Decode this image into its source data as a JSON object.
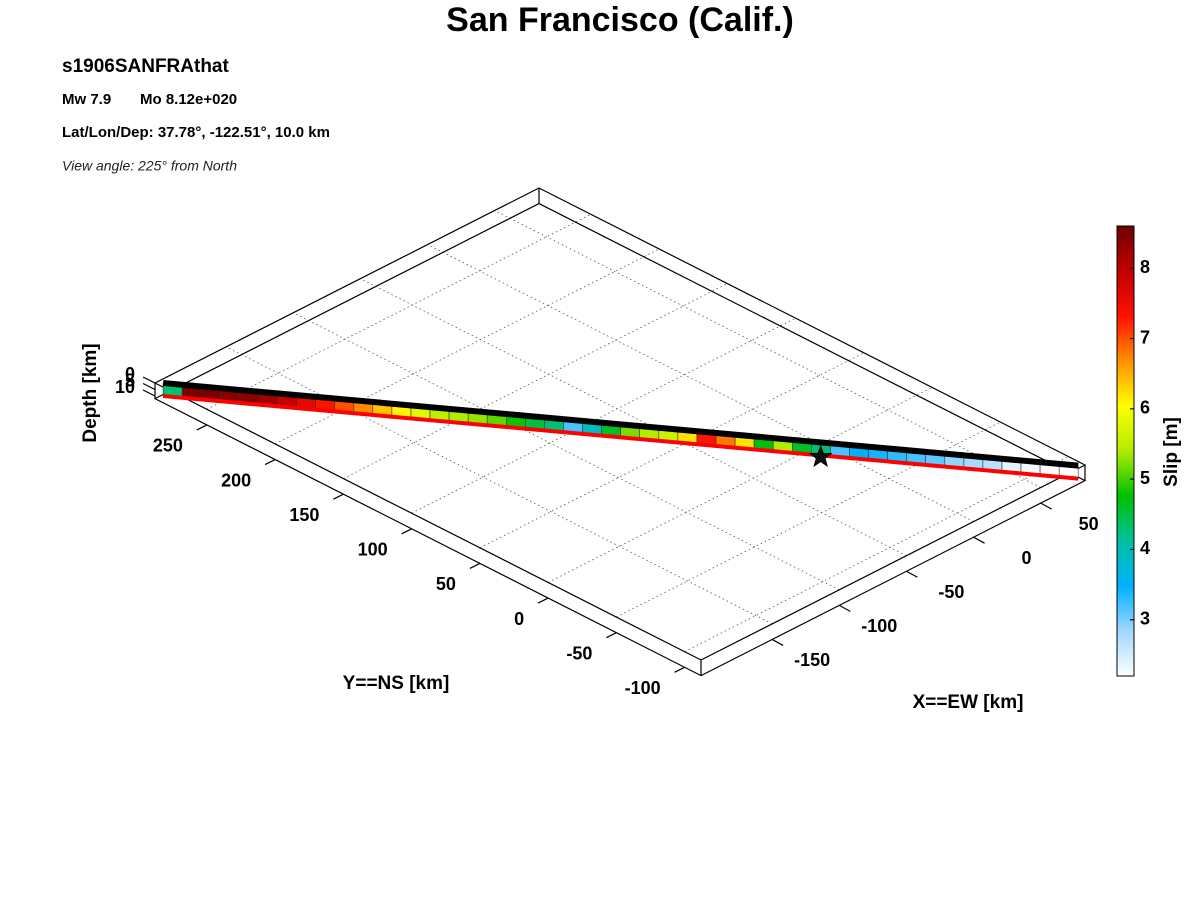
{
  "chart_data": {
    "type": "fault-slip",
    "title": "San Francisco (Calif.)",
    "event_id": "s1906SANFRAthat",
    "magnitude": "Mw 7.9",
    "moment": "Mo 8.12e+020",
    "location": "Lat/Lon/Dep: 37.78°, -122.51°, 10.0 km",
    "view": "View angle: 225° from North",
    "xlabel": "X==EW [km]",
    "ylabel": "Y==NS [km]",
    "zlabel": "Depth [km]",
    "colorbar_label": "Slip [m]",
    "xlim": [
      -203,
      83
    ],
    "xticks": [
      -150,
      -100,
      -50,
      0,
      50
    ],
    "ylim": [
      -112,
      288
    ],
    "yticks": [
      -100,
      -50,
      0,
      50,
      100,
      150,
      200,
      250
    ],
    "zlim": [
      0,
      12
    ],
    "zticks": [
      0,
      5,
      10
    ],
    "clim": [
      2.2,
      8.6
    ],
    "cticks": [
      3,
      4,
      5,
      6,
      7,
      8
    ],
    "colormap": [
      "#ffffff",
      "#a0d8ff",
      "#00b0ff",
      "#00c0a0",
      "#00c000",
      "#b0ec00",
      "#ffff00",
      "#ff9000",
      "#ff1000",
      "#c00000",
      "#700000"
    ],
    "grid": true,
    "fault": {
      "start": [
        -200,
        285
      ],
      "end": [
        80,
        -110
      ],
      "depth": [
        0,
        10
      ]
    },
    "slip": [
      4.3,
      8.5,
      8.5,
      8.4,
      8.4,
      8.2,
      7.9,
      7.6,
      7.3,
      7.0,
      6.7,
      6.4,
      6.1,
      5.8,
      5.5,
      5.4,
      5.3,
      5.1,
      4.8,
      4.5,
      4.3,
      3.2,
      3.9,
      4.6,
      5.2,
      5.4,
      5.6,
      6.2,
      7.3,
      6.8,
      6.2,
      4.7,
      5.4,
      4.6,
      4.3,
      3.2,
      3.5,
      3.4,
      3.3,
      3.2,
      3.1,
      2.9,
      2.8,
      2.7,
      2.4,
      2.3,
      2.2,
      2.2
    ],
    "hypocenter": {
      "x": 0,
      "y": 0,
      "depth": 10
    }
  }
}
